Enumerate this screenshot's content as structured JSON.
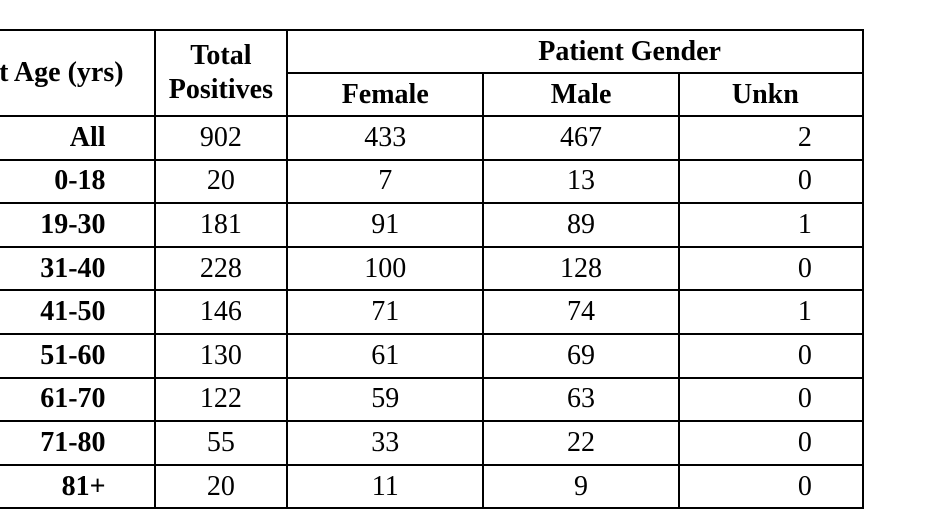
{
  "table": {
    "headers": {
      "age": "nt Age (yrs)",
      "total_line1": "Total",
      "total_line2": "Positives",
      "gender_group": "Patient Gender",
      "female": "Female",
      "male": "Male",
      "unknown": "Unkn"
    },
    "rows": [
      {
        "age": "All",
        "total": "902",
        "female": "433",
        "male": "467",
        "unknown": "2"
      },
      {
        "age": "0-18",
        "total": "20",
        "female": "7",
        "male": "13",
        "unknown": "0"
      },
      {
        "age": "19-30",
        "total": "181",
        "female": "91",
        "male": "89",
        "unknown": "1"
      },
      {
        "age": "31-40",
        "total": "228",
        "female": "100",
        "male": "128",
        "unknown": "0"
      },
      {
        "age": "41-50",
        "total": "146",
        "female": "71",
        "male": "74",
        "unknown": "1"
      },
      {
        "age": "51-60",
        "total": "130",
        "female": "61",
        "male": "69",
        "unknown": "0"
      },
      {
        "age": "61-70",
        "total": "122",
        "female": "59",
        "male": "63",
        "unknown": "0"
      },
      {
        "age": "71-80",
        "total": "55",
        "female": "33",
        "male": "22",
        "unknown": "0"
      },
      {
        "age": "81+",
        "total": "20",
        "female": "11",
        "male": "9",
        "unknown": "0"
      }
    ]
  }
}
